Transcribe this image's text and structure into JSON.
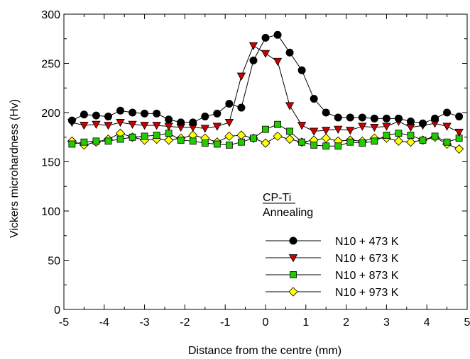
{
  "chart_data": {
    "type": "line",
    "xlabel": "Distance from the centre (mm)",
    "ylabel": "Vickers microhardness (Hv)",
    "xlim": [
      -5,
      5
    ],
    "ylim": [
      0,
      300
    ],
    "x_ticks": [
      "-5",
      "-4",
      "-3",
      "-2",
      "-1",
      "0",
      "1",
      "2",
      "3",
      "4",
      "5"
    ],
    "y_ticks": [
      "0",
      "50",
      "100",
      "150",
      "200",
      "250",
      "300"
    ],
    "grid": false,
    "legend_position": "bottom-right",
    "annotation": {
      "line1": "CP-Ti",
      "line2": "Annealing"
    },
    "series": [
      {
        "name": "N10 + 473 K",
        "marker": "circle",
        "fill": "#000000",
        "x": [
          -4.8,
          -4.5,
          -4.2,
          -3.9,
          -3.6,
          -3.3,
          -3.0,
          -2.7,
          -2.4,
          -2.1,
          -1.8,
          -1.5,
          -1.2,
          -0.9,
          -0.6,
          -0.3,
          0.0,
          0.3,
          0.6,
          0.9,
          1.2,
          1.5,
          1.8,
          2.1,
          2.4,
          2.7,
          3.0,
          3.3,
          3.6,
          3.9,
          4.2,
          4.5,
          4.8
        ],
        "y": [
          192,
          198,
          197,
          196,
          202,
          200,
          199,
          199,
          193,
          190,
          190,
          196,
          199,
          209,
          205,
          253,
          276,
          279,
          261,
          243,
          214,
          200,
          195,
          195,
          195,
          194,
          194,
          194,
          191,
          189,
          194,
          200,
          196
        ]
      },
      {
        "name": "N10 + 673 K",
        "marker": "triangle-down",
        "fill": "#cc0000",
        "x": [
          -4.8,
          -4.5,
          -4.2,
          -3.9,
          -3.6,
          -3.3,
          -3.0,
          -2.7,
          -2.4,
          -2.1,
          -1.8,
          -1.5,
          -1.2,
          -0.9,
          -0.6,
          -0.3,
          0.0,
          0.3,
          0.6,
          0.9,
          1.2,
          1.5,
          1.8,
          2.1,
          2.4,
          2.7,
          3.0,
          3.3,
          3.6,
          3.9,
          4.2,
          4.5,
          4.8
        ],
        "y": [
          190,
          187,
          188,
          187,
          190,
          188,
          187,
          187,
          186,
          185,
          185,
          184,
          186,
          190,
          237,
          268,
          260,
          252,
          207,
          187,
          181,
          182,
          183,
          182,
          186,
          185,
          186,
          191,
          185,
          187,
          189,
          186,
          180
        ]
      },
      {
        "name": "N10 + 873 K",
        "marker": "square",
        "fill": "#22cc00",
        "x": [
          -4.8,
          -4.5,
          -4.2,
          -3.9,
          -3.6,
          -3.3,
          -3.0,
          -2.7,
          -2.4,
          -2.1,
          -1.8,
          -1.5,
          -1.2,
          -0.9,
          -0.6,
          -0.3,
          0.0,
          0.3,
          0.6,
          0.9,
          1.2,
          1.5,
          1.8,
          2.1,
          2.4,
          2.7,
          3.0,
          3.3,
          3.6,
          3.9,
          4.2,
          4.5,
          4.8
        ],
        "y": [
          168,
          170,
          171,
          171,
          173,
          175,
          176,
          177,
          179,
          172,
          171,
          169,
          168,
          167,
          170,
          174,
          183,
          188,
          181,
          170,
          167,
          166,
          166,
          170,
          169,
          171,
          177,
          179,
          177,
          172,
          176,
          170,
          174
        ]
      },
      {
        "name": "N10 + 973 K",
        "marker": "diamond",
        "fill": "#ffff00",
        "x": [
          -4.8,
          -4.5,
          -4.2,
          -3.9,
          -3.6,
          -3.3,
          -3.0,
          -2.7,
          -2.4,
          -2.1,
          -1.8,
          -1.5,
          -1.2,
          -0.9,
          -0.6,
          -0.3,
          0.0,
          0.3,
          0.6,
          0.9,
          1.2,
          1.5,
          1.8,
          2.1,
          2.4,
          2.7,
          3.0,
          3.3,
          3.6,
          3.9,
          4.2,
          4.5,
          4.8
        ],
        "y": [
          171,
          167,
          170,
          173,
          179,
          175,
          172,
          173,
          172,
          174,
          177,
          174,
          170,
          176,
          177,
          174,
          169,
          176,
          173,
          170,
          172,
          174,
          171,
          172,
          171,
          174,
          174,
          171,
          170,
          172,
          175,
          168,
          163
        ]
      }
    ]
  }
}
